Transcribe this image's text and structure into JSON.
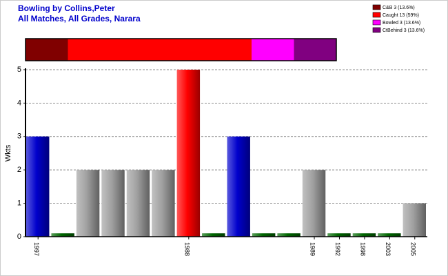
{
  "chart_data": {
    "type": "bar",
    "title": "Bowling by Collins,Peter",
    "subtitle": "All Matches, All Grades, Narara",
    "y_label": "Wkts",
    "categories": [
      "1997",
      null,
      null,
      null,
      null,
      null,
      "1988",
      null,
      null,
      null,
      null,
      "1989",
      "1992",
      "1998",
      "2003",
      "2005"
    ],
    "values": [
      3,
      0.1,
      2,
      2,
      2,
      2,
      5,
      0.1,
      3,
      0.1,
      0.1,
      2,
      0.1,
      0.1,
      0.1,
      1
    ],
    "colors": [
      "#0000cc",
      "#006600",
      "#a0a0a0",
      "#a0a0a0",
      "#a0a0a0",
      "#a0a0a0",
      "#ff0000",
      "#006600",
      "#0000cc",
      "#006600",
      "#006600",
      "#a0a0a0",
      "#006600",
      "#006600",
      "#006600",
      "#a0a0a0"
    ],
    "ylim": [
      0,
      5
    ],
    "yticks": [
      0,
      1,
      2,
      3,
      4,
      5
    ],
    "grid": true,
    "legend_position": "top-right",
    "breakdown": [
      {
        "label": "C&B 3 (13.6%)",
        "value": 3,
        "color": "#800000"
      },
      {
        "label": "Caught 13 (59%)",
        "value": 13,
        "color": "#ff0000"
      },
      {
        "label": "Bowled 3 (13.6%)",
        "value": 3,
        "color": "#ff00ff"
      },
      {
        "label": "CtBehind 3 (13.6%)",
        "value": 3,
        "color": "#800080"
      }
    ]
  }
}
